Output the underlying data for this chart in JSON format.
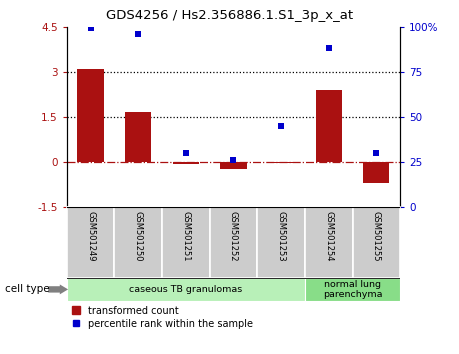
{
  "title": "GDS4256 / Hs2.356886.1.S1_3p_x_at",
  "samples": [
    "GSM501249",
    "GSM501250",
    "GSM501251",
    "GSM501252",
    "GSM501253",
    "GSM501254",
    "GSM501255"
  ],
  "transformed_count": [
    3.1,
    1.65,
    -0.08,
    -0.25,
    -0.05,
    2.4,
    -0.7
  ],
  "percentile_rank": [
    99,
    96,
    30,
    26,
    45,
    88,
    30
  ],
  "ylim_left": [
    -1.5,
    4.5
  ],
  "ylim_right": [
    0,
    100
  ],
  "yticks_left": [
    -1.5,
    0,
    1.5,
    3,
    4.5
  ],
  "ytick_labels_left": [
    "-1.5",
    "0",
    "1.5",
    "3",
    "4.5"
  ],
  "yticks_right": [
    0,
    25,
    50,
    75,
    100
  ],
  "ytick_labels_right": [
    "0",
    "25",
    "50",
    "75",
    "100%"
  ],
  "hlines": [
    3.0,
    1.5
  ],
  "hline_zero": 0.0,
  "bar_color": "#aa1111",
  "dot_color": "#0000cc",
  "bar_width": 0.55,
  "cell_type_groups": [
    {
      "label": "caseous TB granulomas",
      "samples": [
        0,
        1,
        2,
        3,
        4
      ],
      "color": "#b8f0b8"
    },
    {
      "label": "normal lung\nparenchyma",
      "samples": [
        5,
        6
      ],
      "color": "#88dd88"
    }
  ],
  "cell_type_label": "cell type",
  "legend_bar_label": "transformed count",
  "legend_dot_label": "percentile rank within the sample",
  "tick_bg_color": "#cccccc",
  "title_fontsize": 9.5
}
